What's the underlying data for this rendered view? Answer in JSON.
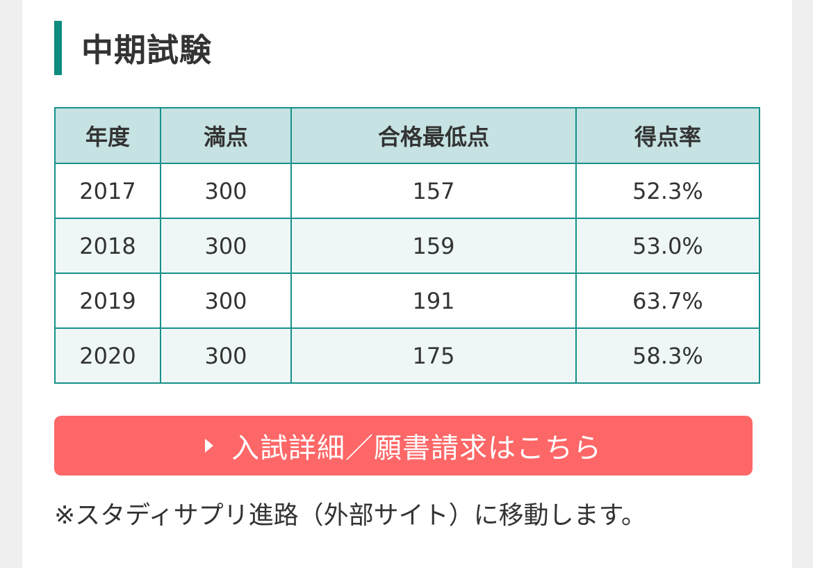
{
  "section": {
    "title": "中期試験"
  },
  "table": {
    "headers": [
      "年度",
      "満点",
      "合格最低点",
      "得点率"
    ],
    "rows": [
      [
        "2017",
        "300",
        "157",
        "52.3%"
      ],
      [
        "2018",
        "300",
        "159",
        "53.0%"
      ],
      [
        "2019",
        "300",
        "191",
        "63.7%"
      ],
      [
        "2020",
        "300",
        "175",
        "58.3%"
      ]
    ]
  },
  "cta": {
    "icon": "triangle-right-icon",
    "label": "入試詳細／願書請求はこちら"
  },
  "note": "※スタディサプリ進路（外部サイト）に移動します。",
  "colors": {
    "accent": "#0e8a7e",
    "table_border": "#16908a",
    "header_bg": "#c6e2e2",
    "stripe_bg": "#eef7f6",
    "button_bg": "#fe6767",
    "text": "#333333"
  }
}
